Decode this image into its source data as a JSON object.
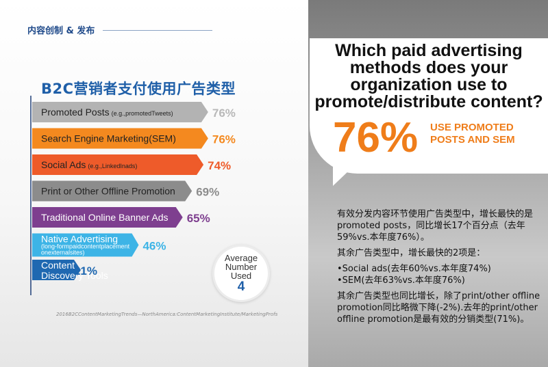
{
  "header": {
    "section": "内容创制 & 发布"
  },
  "chart_data": {
    "type": "bar",
    "title": "B2C营销者支付使用广告类型",
    "categories": [
      "Promoted Posts",
      "Search Engine Marketing(SEM)",
      "Social Ads",
      "Print or Other Offline Promotion",
      "Traditional Online Banner Ads",
      "Native Advertising",
      "Content Discovery Tools"
    ],
    "notes": [
      "(e.g.,promotedTweets)",
      "",
      "(e.g.,LinkedInads)",
      "",
      "",
      "(long-formpaidcontentplacement onexternalsites)",
      ""
    ],
    "native_note_lines": [
      "(long-formpaidcontentplacement",
      "onexternalsites)"
    ],
    "values": [
      76,
      76,
      74,
      69,
      65,
      46,
      21
    ],
    "value_labels": [
      "76%",
      "76%",
      "74%",
      "69%",
      "65%",
      "46%",
      "21%"
    ],
    "colors": [
      "#b3b3b3",
      "#f4891f",
      "#ee5b2a",
      "#8c8c8c",
      "#7e3f8f",
      "#3db4e6",
      "#1f68b1"
    ],
    "label_colors": [
      "#b8b8b8",
      "#f4891f",
      "#ee5b2a",
      "#8c8c8c",
      "#7e3f8f",
      "#3db4e6",
      "#1f68b1"
    ],
    "xlim": [
      0,
      100
    ]
  },
  "average": {
    "label_lines": [
      "Average",
      "Number",
      "Used"
    ],
    "value": "4"
  },
  "source": "2016B2CContentMarketingTrends—NorthAmerica:ContentMarketingInstitute/MarketingProfs",
  "callout": {
    "question": "Which paid advertising methods does your organization use to promote/distribute content?",
    "big_pct": "76%",
    "big_text": "USE PROMOTED POSTS AND SEM"
  },
  "notes": {
    "p1": "有效分发内容环节使用广告类型中，增长最快的是promoted posts，同比增长17个百分点（去年59%vs.本年度76%）。",
    "p2": "其余广告类型中，增长最快的2项是：",
    "b1": "•Social ads(去年60%vs.本年度74%)",
    "b2": "•SEM(去年63%vs.本年度76%)",
    "p3": "其余广告类型也同比增长，除了print/other offline promotion同比略微下降(-2%).去年的print/other offline promotion是最有效的分销类型(71%)。"
  }
}
